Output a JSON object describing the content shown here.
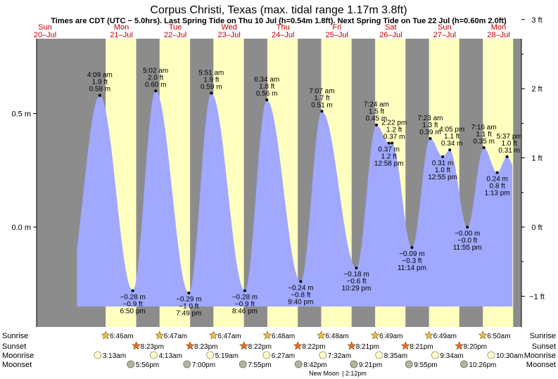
{
  "title": "Corpus Christi, Texas (max. tidal range 1.17m 3.8ft)",
  "subtitle": "Times are CDT (UTC − 5.0hrs). Last Spring Tide on Thu 10 Jul (h=0.54m 1.8ft). Next Spring Tide on Tue 22 Jul (h=0.60m 2.0ft)",
  "colors": {
    "night": "#8c8c8c",
    "day": "#ffffc0",
    "tide": "#a0a8ff",
    "day_label": "#c00000",
    "sunrise_star": "#e8c040",
    "sunset_star": "#e07030",
    "moonrise_disc": "#ffffd0",
    "moonset_disc": "#b4b4a0"
  },
  "chart_data": {
    "type": "area",
    "title": "Corpus Christi, Texas (max. tidal range 1.17m 3.8ft)",
    "subtitle": "Times are CDT (UTC − 5.0hrs). Last Spring Tide on Thu 10 Jul (h=0.54m 1.8ft). Next Spring Tide on Tue 22 Jul (h=0.60m 2.0ft)",
    "x_unit": "hours since 00:00 Sun 20 Jul (CDT)",
    "xlim": [
      0,
      216
    ],
    "ylim": [
      -0.44,
      0.83
    ],
    "left_axis_ticks": [
      {
        "value": 0.5,
        "label": "0.5 m"
      },
      {
        "value": 0.0,
        "label": "0.0 m"
      }
    ],
    "right_axis_ticks": [
      {
        "value": 3,
        "label": "3 ft"
      },
      {
        "value": 2,
        "label": "2 ft"
      },
      {
        "value": 1,
        "label": "1 ft"
      },
      {
        "value": 0,
        "label": "0 ft"
      },
      {
        "value": -1,
        "label": "−1 ft"
      }
    ],
    "days": [
      {
        "dow": "Sun",
        "date": "20–Jul"
      },
      {
        "dow": "Mon",
        "date": "21–Jul"
      },
      {
        "dow": "Tue",
        "date": "22–Jul"
      },
      {
        "dow": "Wed",
        "date": "23–Jul"
      },
      {
        "dow": "Thu",
        "date": "24–Jul"
      },
      {
        "dow": "Fri",
        "date": "25–Jul"
      },
      {
        "dow": "Sat",
        "date": "26–Jul"
      },
      {
        "dow": "Sun",
        "date": "27–Jul"
      },
      {
        "dow": "Mon",
        "date": "28–Jul"
      }
    ],
    "tide_start_hour": 18,
    "tide_end_hour": 212,
    "extrema": [
      {
        "type": "high",
        "t": 28.15,
        "h": 0.58,
        "lines": [
          "4:09 am",
          "1.9 ft",
          "0.58 m"
        ]
      },
      {
        "type": "low",
        "t": 42.83,
        "h": -0.28,
        "lines": [
          "−0.28 m",
          "−0.9 ft",
          "6:50 pm"
        ]
      },
      {
        "type": "high",
        "t": 53.03,
        "h": 0.6,
        "lines": [
          "5:02 am",
          "2.0 ft",
          "0.60 m"
        ]
      },
      {
        "type": "low",
        "t": 67.82,
        "h": -0.29,
        "lines": [
          "−0.29 m",
          "−1.0 ft",
          "7:49 pm"
        ]
      },
      {
        "type": "high",
        "t": 77.85,
        "h": 0.59,
        "lines": [
          "5:51 am",
          "1.9 ft",
          "0.59 m"
        ]
      },
      {
        "type": "low",
        "t": 92.77,
        "h": -0.28,
        "lines": [
          "−0.28 m",
          "−0.9 ft",
          "8:46 pm"
        ]
      },
      {
        "type": "high",
        "t": 102.57,
        "h": 0.56,
        "lines": [
          "6:34 am",
          "1.8 ft",
          "0.56 m"
        ]
      },
      {
        "type": "low",
        "t": 117.67,
        "h": -0.24,
        "lines": [
          "−0.24 m",
          "−0.8 ft",
          "9:40 pm"
        ]
      },
      {
        "type": "high",
        "t": 127.12,
        "h": 0.51,
        "lines": [
          "7:07 am",
          "1.7 ft",
          "0.51 m"
        ]
      },
      {
        "type": "low",
        "t": 142.48,
        "h": -0.18,
        "lines": [
          "−0.18 m",
          "−0.6 ft",
          "10:29 pm"
        ]
      },
      {
        "type": "high",
        "t": 151.4,
        "h": 0.45,
        "lines": [
          "7:24 am",
          "1.5 ft",
          "0.45 m"
        ]
      },
      {
        "type": "high2",
        "t": 158.37,
        "h": 0.37,
        "lines": [
          "2:22 pm",
          "1.2 ft",
          "0.37 m"
        ]
      },
      {
        "type": "low2",
        "t": 156.97,
        "h": 0.37,
        "lines": [
          "0.37 m",
          "1.2 ft",
          "12:58 pm"
        ]
      },
      {
        "type": "low",
        "t": 167.23,
        "h": -0.09,
        "lines": [
          "−0.09 m",
          "−0.3 ft",
          "11:14 pm"
        ]
      },
      {
        "type": "high",
        "t": 175.38,
        "h": 0.39,
        "lines": [
          "7:23 am",
          "1.3 ft",
          "0.39 m"
        ]
      },
      {
        "type": "low2",
        "t": 180.92,
        "h": 0.31,
        "lines": [
          "0.31 m",
          "1.0 ft",
          "12:55 pm"
        ]
      },
      {
        "type": "high2",
        "t": 184.08,
        "h": 0.34,
        "lines": [
          "4:05 pm",
          "1.1 ft",
          "0.34 m"
        ]
      },
      {
        "type": "low",
        "t": 191.92,
        "h": -0.0,
        "lines": [
          "−0.00 m",
          "−0.0 ft",
          "11:55 pm"
        ]
      },
      {
        "type": "high",
        "t": 199.27,
        "h": 0.35,
        "lines": [
          "7:16 am",
          "1.1 ft",
          "0.35 m"
        ]
      },
      {
        "type": "low2",
        "t": 205.22,
        "h": 0.24,
        "lines": [
          "0.24 m",
          "0.8 ft",
          "1:13 pm"
        ]
      },
      {
        "type": "high2",
        "t": 209.62,
        "h": 0.31,
        "lines": [
          "5:37 pm",
          "1.0 ft",
          "0.31 m"
        ]
      }
    ],
    "sun": [
      {
        "day": 1,
        "rise": "6:46am",
        "set": "8:23pm",
        "rise_t": 30.77,
        "set_t": 44.38
      },
      {
        "day": 2,
        "rise": "6:47am",
        "set": "8:23pm",
        "rise_t": 54.78,
        "set_t": 68.38
      },
      {
        "day": 3,
        "rise": "6:47am",
        "set": "8:22pm",
        "rise_t": 78.78,
        "set_t": 92.37
      },
      {
        "day": 4,
        "rise": "6:48am",
        "set": "8:22pm",
        "rise_t": 102.8,
        "set_t": 116.37
      },
      {
        "day": 5,
        "rise": "6:48am",
        "set": "8:21pm",
        "rise_t": 126.8,
        "set_t": 140.35
      },
      {
        "day": 6,
        "rise": "6:49am",
        "set": "8:21pm",
        "rise_t": 150.82,
        "set_t": 164.35
      },
      {
        "day": 7,
        "rise": "6:49am",
        "set": "8:20pm",
        "rise_t": 174.82,
        "set_t": 188.33
      },
      {
        "day": 8,
        "rise": "6:50am",
        "set": "",
        "rise_t": 198.83,
        "set_t": 212.33
      }
    ],
    "moonrise": [
      {
        "label": "3:13am",
        "t": 27.22
      },
      {
        "label": "4:13am",
        "t": 52.22
      },
      {
        "label": "5:19am",
        "t": 77.32
      },
      {
        "label": "6:27am",
        "t": 102.45
      },
      {
        "label": "7:32am",
        "t": 127.53
      },
      {
        "label": "8:35am",
        "t": 152.58
      },
      {
        "label": "9:34am",
        "t": 177.57
      },
      {
        "label": "10:30am",
        "t": 202.5
      }
    ],
    "moonset": [
      {
        "label": "5:56pm",
        "t": 41.93
      },
      {
        "label": "7:00pm",
        "t": 67.0
      },
      {
        "label": "7:55pm",
        "t": 91.92
      },
      {
        "label": "8:42pm",
        "t": 116.7
      },
      {
        "label": "9:21pm",
        "t": 141.35
      },
      {
        "label": "9:55pm",
        "t": 165.92
      },
      {
        "label": "10:26pm",
        "t": 190.43
      }
    ],
    "row_labels": [
      "Sunrise",
      "Sunset",
      "Moonrise",
      "Moonset"
    ],
    "moon_phase": {
      "label": "New Moon",
      "time": "2:12pm",
      "t": 134.2
    }
  }
}
